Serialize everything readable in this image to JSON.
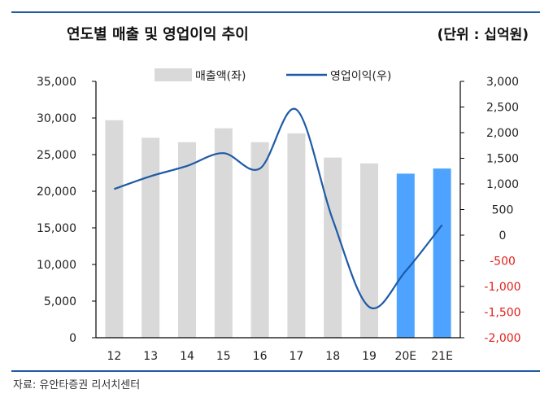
{
  "header": {
    "title": "연도별 매출 및 영업이익 추이",
    "unit": "(단위 : 십억원)"
  },
  "footer": {
    "source": "자료: 유안타증권 리서치센터"
  },
  "colors": {
    "bar": "#d9d9d9",
    "bar_estimate": "#4da3ff",
    "line": "#1f5aa6",
    "negative_tick": "#e0201b",
    "rule": "#1f5aa6"
  },
  "chart_data": {
    "type": "bar",
    "title": "연도별 매출 및 영업이익 추이",
    "categories": [
      "12",
      "13",
      "14",
      "15",
      "16",
      "17",
      "18",
      "19",
      "20E",
      "21E"
    ],
    "series": [
      {
        "name": "매출액(좌)",
        "type": "bar",
        "axis": "left",
        "values": [
          29700,
          27300,
          26700,
          28600,
          26700,
          27900,
          24600,
          23800,
          22400,
          23100
        ],
        "highlight": [
          false,
          false,
          false,
          false,
          false,
          false,
          false,
          false,
          true,
          true
        ]
      },
      {
        "name": "영업이익(우)",
        "type": "line",
        "axis": "right",
        "values": [
          900,
          1150,
          1350,
          1600,
          1300,
          2450,
          300,
          -1400,
          -700,
          200
        ]
      }
    ],
    "y_left": {
      "min": 0,
      "max": 35000,
      "ticks": [
        0,
        5000,
        10000,
        15000,
        20000,
        25000,
        30000,
        35000
      ],
      "tick_labels": [
        "0",
        "5,000",
        "10,000",
        "15,000",
        "20,000",
        "25,000",
        "30,000",
        "35,000"
      ]
    },
    "y_right": {
      "min": -2000,
      "max": 3000,
      "ticks": [
        -2000,
        -1500,
        -1000,
        -500,
        0,
        500,
        1000,
        1500,
        2000,
        2500,
        3000
      ],
      "tick_labels": [
        "-2,000",
        "-1,500",
        "-1,000",
        "-500",
        "0",
        "500",
        "1,000",
        "1,500",
        "2,000",
        "2,500",
        "3,000"
      ]
    },
    "legend_position": "top",
    "grid": false
  }
}
